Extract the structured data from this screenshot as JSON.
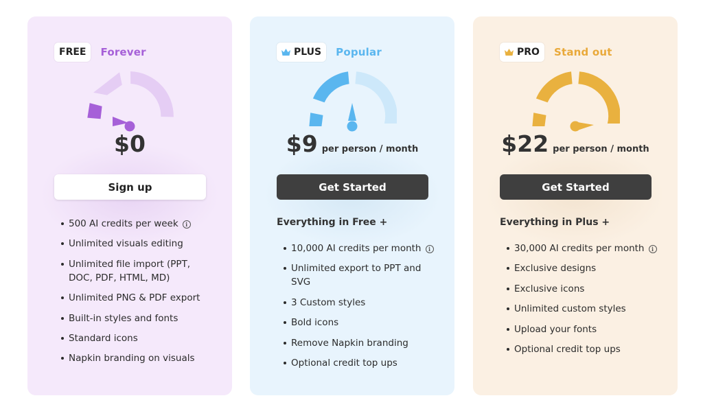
{
  "plans": [
    {
      "tag": "FREE",
      "tagline": "Forever",
      "price": "$0",
      "per": "",
      "cta": "Sign up",
      "heading": "",
      "features": [
        "500 AI credits per week",
        "Unlimited visuals editing",
        "Unlimited file import (PPT, DOC, PDF, HTML, MD)",
        "Unlimited PNG & PDF export",
        "Built-in styles and fonts",
        "Standard icons",
        "Napkin branding on visuals"
      ],
      "colors": {
        "background": "#f5e9fb",
        "accent": "#a660d8",
        "accent_light": "#e5cdf4"
      },
      "gauge_level": 0.15
    },
    {
      "tag": "PLUS",
      "tagline": "Popular",
      "price": "$9",
      "per": "per person / month",
      "cta": "Get Started",
      "heading": "Everything in Free +",
      "features": [
        "10,000 AI credits per month",
        "Unlimited export to PPT and SVG",
        "3 Custom styles",
        "Bold icons",
        "Remove Napkin branding",
        "Optional credit top ups"
      ],
      "colors": {
        "background": "#e8f4fd",
        "accent": "#5ab6ef",
        "accent_light": "#cde8fa"
      },
      "gauge_level": 0.5
    },
    {
      "tag": "PRO",
      "tagline": "Stand out",
      "price": "$22",
      "per": "per person / month",
      "cta": "Get Started",
      "heading": "Everything in Plus +",
      "features": [
        "30,000 AI credits per month",
        "Exclusive designs",
        "Exclusive icons",
        "Unlimited custom styles",
        "Upload your fonts",
        "Optional credit top ups"
      ],
      "colors": {
        "background": "#fbf0e3",
        "accent": "#e9b13f",
        "accent_light": "#f3d9a8"
      },
      "gauge_level": 0.95
    }
  ],
  "icons": {
    "info": "info-icon",
    "crown": "crown-icon",
    "gauge": "gauge-icon"
  }
}
